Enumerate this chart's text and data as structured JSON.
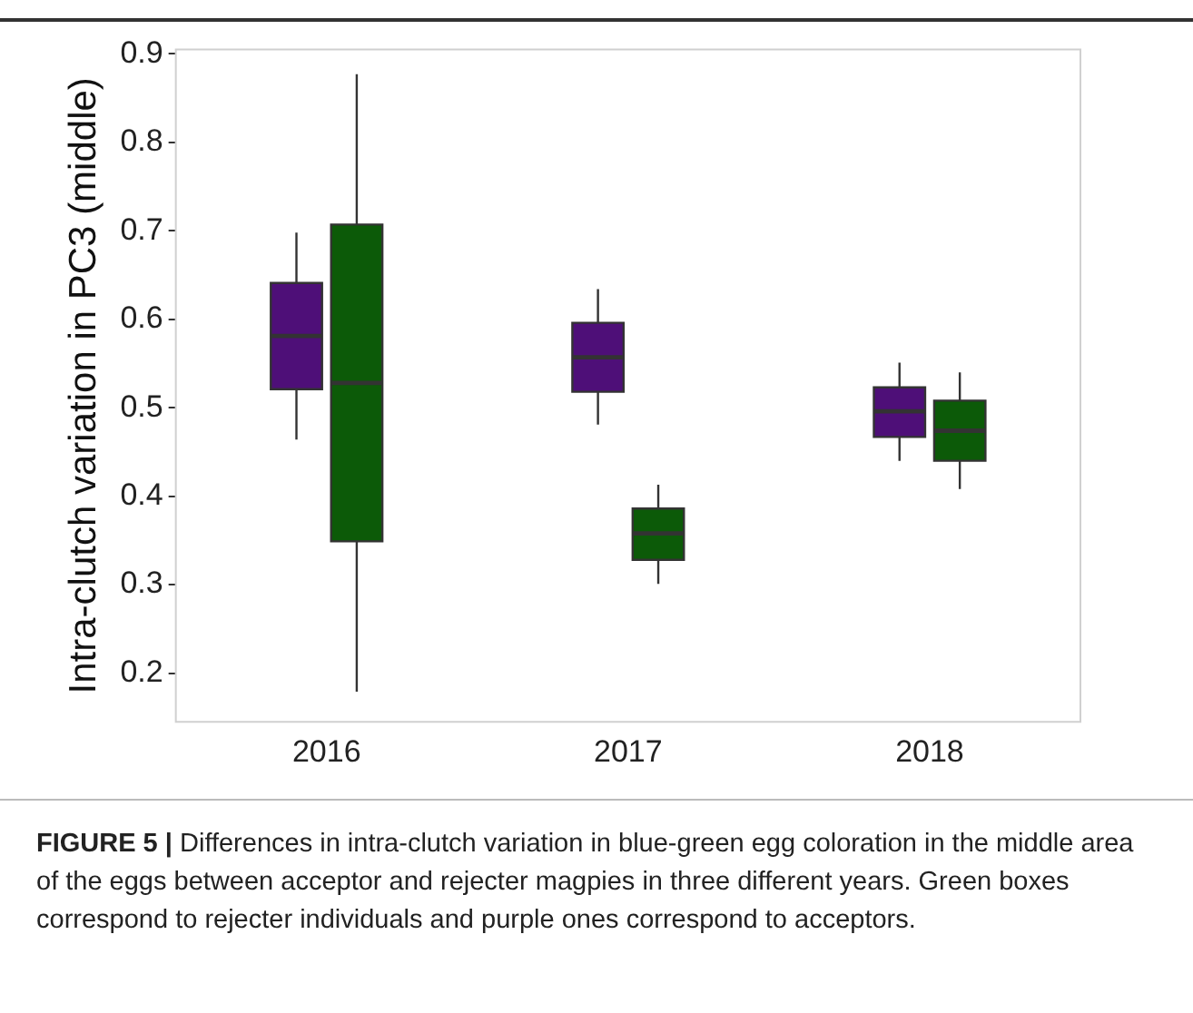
{
  "chart_data": {
    "type": "box",
    "ylabel": "Intra-clutch variation in PC3 (middle)",
    "categories": [
      "2016",
      "2017",
      "2018"
    ],
    "series": [
      {
        "color": "#4e0f78",
        "boxes": [
          {
            "low": 0.464,
            "q1": 0.521,
            "median": 0.581,
            "q3": 0.641,
            "high": 0.698
          },
          {
            "low": 0.481,
            "q1": 0.518,
            "median": 0.557,
            "q3": 0.596,
            "high": 0.634
          },
          {
            "low": 0.44,
            "q1": 0.467,
            "median": 0.496,
            "q3": 0.523,
            "high": 0.551
          }
        ]
      },
      {
        "color": "#0c5a08",
        "boxes": [
          {
            "low": 0.179,
            "q1": 0.349,
            "median": 0.528,
            "q3": 0.707,
            "high": 0.877
          },
          {
            "low": 0.301,
            "q1": 0.328,
            "median": 0.358,
            "q3": 0.386,
            "high": 0.413
          },
          {
            "low": 0.408,
            "q1": 0.44,
            "median": 0.474,
            "q3": 0.508,
            "high": 0.54
          }
        ]
      }
    ],
    "ylim": [
      0.145,
      0.905
    ],
    "yticks": [
      {
        "value": 0.2,
        "label": "0.2"
      },
      {
        "value": 0.3,
        "label": "0.3"
      },
      {
        "value": 0.4,
        "label": "0.4"
      },
      {
        "value": 0.5,
        "label": "0.5"
      },
      {
        "value": 0.6,
        "label": "0.6"
      },
      {
        "value": 0.7,
        "label": "0.7"
      },
      {
        "value": 0.8,
        "label": "0.8"
      },
      {
        "value": 0.9,
        "label": "0.9"
      }
    ],
    "grid": false,
    "legend": false,
    "annotations": [
      "FIGURE 5 | Differences in intra-clutch variation in blue-green egg coloration in the middle area of the eggs between acceptor and rejecter magpies in three different years. Green boxes correspond to rejecter individuals and purple ones correspond to acceptors."
    ]
  }
}
